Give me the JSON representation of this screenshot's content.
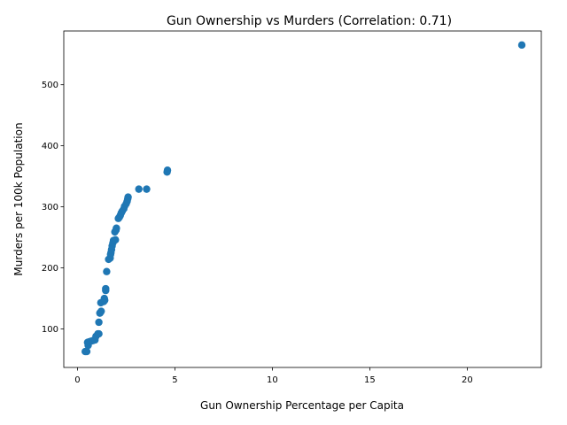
{
  "chart_data": {
    "type": "scatter",
    "title": "Gun Ownership vs Murders (Correlation: 0.71)",
    "xlabel": "Gun Ownership Percentage per Capita",
    "ylabel": "Murders per 100k Population",
    "xlim": [
      -0.7,
      23.8
    ],
    "ylim": [
      37,
      588
    ],
    "xticks": [
      0,
      5,
      10,
      15,
      20
    ],
    "yticks": [
      100,
      200,
      300,
      400,
      500
    ],
    "xtick_labels": [
      "0",
      "5",
      "10",
      "15",
      "20"
    ],
    "ytick_labels": [
      "100",
      "200",
      "300",
      "400",
      "500"
    ],
    "grid": false,
    "legend": "none",
    "marker_color": "#1f77b4",
    "points": [
      [
        0.4,
        63
      ],
      [
        0.48,
        63
      ],
      [
        0.55,
        73
      ],
      [
        0.52,
        78
      ],
      [
        0.6,
        79
      ],
      [
        0.7,
        80
      ],
      [
        0.8,
        81
      ],
      [
        0.9,
        82
      ],
      [
        0.95,
        88
      ],
      [
        1.05,
        92
      ],
      [
        1.1,
        92
      ],
      [
        1.1,
        111
      ],
      [
        1.15,
        126
      ],
      [
        1.18,
        127
      ],
      [
        1.22,
        129
      ],
      [
        1.2,
        143
      ],
      [
        1.35,
        145
      ],
      [
        1.4,
        147
      ],
      [
        1.38,
        150
      ],
      [
        1.45,
        163
      ],
      [
        1.45,
        166
      ],
      [
        1.5,
        194
      ],
      [
        1.6,
        214
      ],
      [
        1.68,
        216
      ],
      [
        1.7,
        222
      ],
      [
        1.72,
        225
      ],
      [
        1.75,
        230
      ],
      [
        1.78,
        236
      ],
      [
        1.82,
        241
      ],
      [
        1.85,
        245
      ],
      [
        1.95,
        246
      ],
      [
        1.92,
        259
      ],
      [
        1.98,
        262
      ],
      [
        2.0,
        265
      ],
      [
        2.1,
        281
      ],
      [
        2.15,
        283
      ],
      [
        2.2,
        286
      ],
      [
        2.25,
        290
      ],
      [
        2.3,
        293
      ],
      [
        2.38,
        297
      ],
      [
        2.42,
        301
      ],
      [
        2.5,
        305
      ],
      [
        2.55,
        309
      ],
      [
        2.58,
        313
      ],
      [
        2.6,
        316
      ],
      [
        3.15,
        329
      ],
      [
        3.55,
        329
      ],
      [
        4.6,
        357
      ],
      [
        4.62,
        360
      ],
      [
        22.8,
        565
      ]
    ]
  }
}
